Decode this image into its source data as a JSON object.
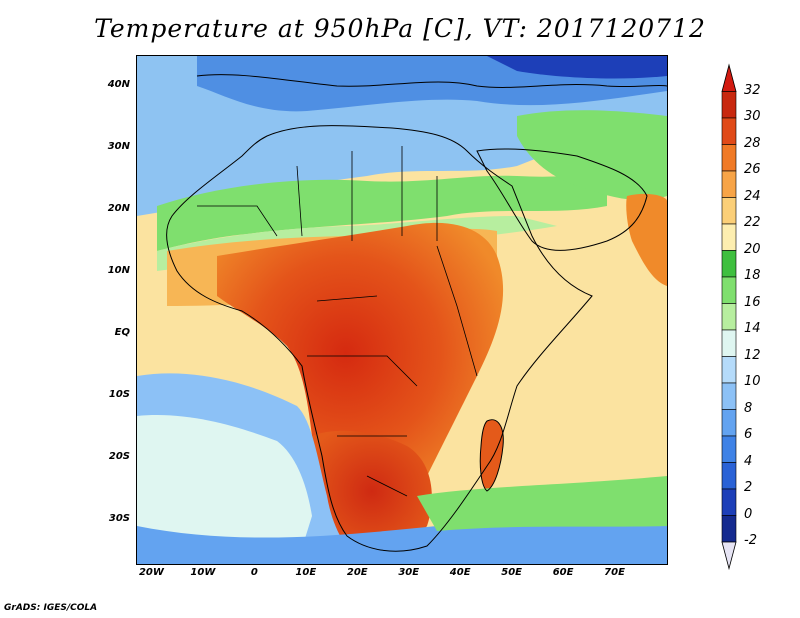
{
  "title": "Temperature at 950hPa [C], VT: 2017120712",
  "credit": "GrADS: IGES/COLA",
  "map": {
    "lon_range": [
      -23,
      80
    ],
    "lat_range": [
      -37,
      45
    ],
    "lat_ticks": [
      {
        "value": 40,
        "label": "40N"
      },
      {
        "value": 30,
        "label": "30N"
      },
      {
        "value": 20,
        "label": "20N"
      },
      {
        "value": 10,
        "label": "10N"
      },
      {
        "value": 0,
        "label": "EQ"
      },
      {
        "value": -10,
        "label": "10S"
      },
      {
        "value": -20,
        "label": "20S"
      },
      {
        "value": -30,
        "label": "30S"
      }
    ],
    "lon_ticks": [
      {
        "value": -20,
        "label": "20W"
      },
      {
        "value": -10,
        "label": "10W"
      },
      {
        "value": 0,
        "label": "0"
      },
      {
        "value": 10,
        "label": "10E"
      },
      {
        "value": 20,
        "label": "20E"
      },
      {
        "value": 30,
        "label": "30E"
      },
      {
        "value": 40,
        "label": "40E"
      },
      {
        "value": 50,
        "label": "50E"
      },
      {
        "value": 60,
        "label": "60E"
      },
      {
        "value": 70,
        "label": "70E"
      }
    ]
  },
  "colorbar": {
    "levels": [
      "32",
      "30",
      "28",
      "26",
      "24",
      "22",
      "20",
      "18",
      "16",
      "14",
      "12",
      "10",
      "8",
      "6",
      "4",
      "2",
      "0",
      "-2"
    ],
    "colors": [
      "#a0a0a0",
      "#2b0f8f",
      "#1d3fb8",
      "#2a62d6",
      "#3f82e6",
      "#63a3f0",
      "#8cc1f6",
      "#b5dbfa",
      "#dff6f1",
      "#b7ee9f",
      "#7fdf6e",
      "#3fbf3f",
      "#fdf2b6",
      "#fbdc8a",
      "#f7b655",
      "#f08a2a",
      "#e45a1a",
      "#cf2a12",
      "#a51a10"
    ]
  }
}
